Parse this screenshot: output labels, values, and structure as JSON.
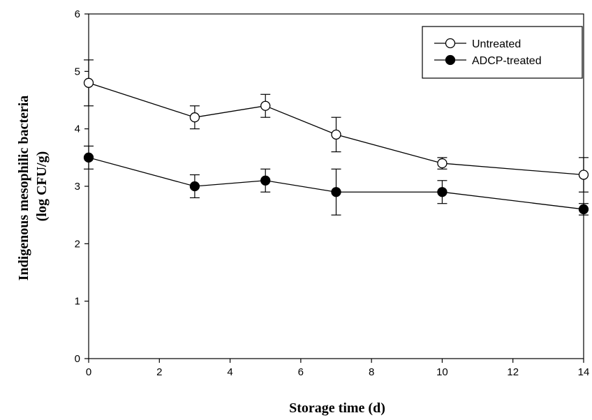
{
  "chart_data": {
    "type": "line",
    "title": "",
    "xlabel": "Storage time (d)",
    "ylabel_lines": [
      "Indigenous mesophilic bacteria",
      "(log CFU/g)"
    ],
    "xlim": [
      0,
      14
    ],
    "ylim": [
      0,
      6
    ],
    "xticks": [
      0,
      2,
      4,
      6,
      8,
      10,
      12,
      14
    ],
    "yticks": [
      0,
      1,
      2,
      3,
      4,
      5,
      6
    ],
    "grid": false,
    "legend_position": "top-right",
    "series": [
      {
        "name": "Untreated",
        "marker": "open-circle",
        "x": [
          0,
          3,
          5,
          7,
          10,
          14
        ],
        "y": [
          4.8,
          4.2,
          4.4,
          3.9,
          3.4,
          3.2
        ],
        "error": [
          0.4,
          0.2,
          0.2,
          0.3,
          0.1,
          0.3
        ]
      },
      {
        "name": "ADCP-treated",
        "marker": "filled-circle",
        "x": [
          0,
          3,
          5,
          7,
          10,
          14
        ],
        "y": [
          3.5,
          3.0,
          3.1,
          2.9,
          2.9,
          2.6
        ],
        "error": [
          0.2,
          0.2,
          0.2,
          0.4,
          0.2,
          0.1
        ]
      }
    ]
  }
}
